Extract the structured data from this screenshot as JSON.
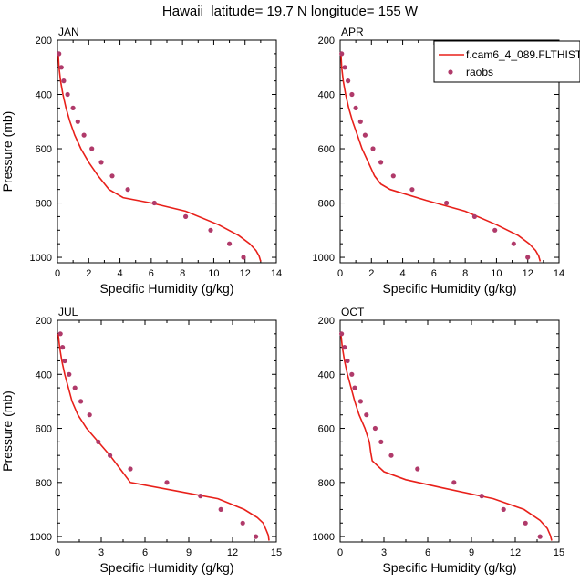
{
  "figure": {
    "title": "Hawaii  latitude= 19.7 N longitude= 155 W"
  },
  "legend": {
    "position": "top-right",
    "entries": [
      {
        "label": "f.cam6_4_089.FLTHIST",
        "kind": "line",
        "color": "#e8201a"
      },
      {
        "label": "raobs",
        "kind": "marker",
        "color": "#b03a6a"
      }
    ]
  },
  "colors": {
    "model_line": "#e8201a",
    "obs_marker": "#b03a6a"
  },
  "chart_data": [
    {
      "type": "line",
      "panel": "JAN",
      "title": "JAN",
      "xlabel": "Specific Humidity (g/kg)",
      "ylabel": "Pressure (mb)",
      "xlim": [
        0,
        14
      ],
      "ylim": [
        1020,
        200
      ],
      "xticks": [
        0,
        2,
        4,
        6,
        8,
        10,
        12,
        14
      ],
      "yticks": [
        200,
        400,
        600,
        800,
        1000
      ],
      "y_reversed": true,
      "series": [
        {
          "name": "f.cam6_4_089.FLTHIST",
          "kind": "line",
          "x": [
            0.05,
            0.1,
            0.2,
            0.35,
            0.55,
            0.8,
            1.1,
            1.5,
            2.0,
            2.6,
            3.3,
            4.2,
            6.0,
            8.2,
            10.3,
            11.6,
            12.3,
            12.7,
            12.9,
            13.0
          ],
          "y": [
            250,
            300,
            350,
            400,
            450,
            500,
            550,
            600,
            650,
            700,
            750,
            780,
            800,
            830,
            880,
            920,
            950,
            975,
            995,
            1015
          ]
        },
        {
          "name": "raobs",
          "kind": "marker",
          "x": [
            0.1,
            0.25,
            0.4,
            0.65,
            1.0,
            1.3,
            1.7,
            2.2,
            2.8,
            3.5,
            4.5,
            6.2,
            8.2,
            9.8,
            11.0,
            11.9
          ],
          "y": [
            250,
            300,
            350,
            400,
            450,
            500,
            550,
            600,
            650,
            700,
            750,
            800,
            850,
            900,
            950,
            1000
          ]
        }
      ]
    },
    {
      "type": "line",
      "panel": "APR",
      "title": "APR",
      "xlabel": "Specific Humidity (g/kg)",
      "ylabel": "",
      "xlim": [
        0,
        14
      ],
      "ylim": [
        1020,
        200
      ],
      "xticks": [
        0,
        2,
        4,
        6,
        8,
        10,
        12,
        14
      ],
      "yticks": [
        200,
        400,
        600,
        800,
        1000
      ],
      "y_reversed": true,
      "series": [
        {
          "name": "f.cam6_4_089.FLTHIST",
          "kind": "line",
          "x": [
            0.05,
            0.1,
            0.2,
            0.35,
            0.55,
            0.8,
            1.1,
            1.4,
            1.8,
            2.2,
            2.6,
            3.2,
            5.5,
            8.0,
            10.0,
            11.4,
            12.1,
            12.5,
            12.7,
            12.8
          ],
          "y": [
            250,
            300,
            350,
            400,
            450,
            500,
            550,
            600,
            650,
            700,
            730,
            750,
            790,
            830,
            880,
            920,
            950,
            975,
            995,
            1015
          ]
        },
        {
          "name": "raobs",
          "kind": "marker",
          "x": [
            0.1,
            0.3,
            0.5,
            0.75,
            1.0,
            1.3,
            1.6,
            2.1,
            2.6,
            3.4,
            4.6,
            6.8,
            8.6,
            9.9,
            11.1,
            12.0
          ],
          "y": [
            250,
            300,
            350,
            400,
            450,
            500,
            550,
            600,
            650,
            700,
            750,
            800,
            850,
            900,
            950,
            1000
          ]
        }
      ]
    },
    {
      "type": "line",
      "panel": "JUL",
      "title": "JUL",
      "xlabel": "Specific Humidity (g/kg)",
      "ylabel": "Pressure (mb)",
      "xlim": [
        0,
        15
      ],
      "ylim": [
        1020,
        200
      ],
      "xticks": [
        0,
        3,
        6,
        9,
        12,
        15
      ],
      "yticks": [
        200,
        400,
        600,
        800,
        1000
      ],
      "y_reversed": true,
      "series": [
        {
          "name": "f.cam6_4_089.FLTHIST",
          "kind": "line",
          "x": [
            0.05,
            0.15,
            0.3,
            0.5,
            0.75,
            1.0,
            1.4,
            2.0,
            2.8,
            3.6,
            4.3,
            5.0,
            8.0,
            11.0,
            12.8,
            13.7,
            14.1,
            14.3,
            14.45,
            14.5
          ],
          "y": [
            250,
            300,
            350,
            400,
            450,
            500,
            550,
            600,
            650,
            700,
            750,
            800,
            830,
            860,
            900,
            930,
            950,
            975,
            995,
            1015
          ]
        },
        {
          "name": "raobs",
          "kind": "marker",
          "x": [
            0.2,
            0.35,
            0.5,
            0.8,
            1.2,
            1.6,
            2.2,
            2.8,
            3.6,
            5.0,
            7.5,
            9.8,
            11.2,
            12.7,
            13.6
          ],
          "y": [
            250,
            300,
            350,
            400,
            450,
            500,
            550,
            650,
            700,
            750,
            800,
            850,
            900,
            950,
            1000
          ]
        }
      ]
    },
    {
      "type": "line",
      "panel": "OCT",
      "title": "OCT",
      "xlabel": "Specific Humidity (g/kg)",
      "ylabel": "",
      "xlim": [
        0,
        15
      ],
      "ylim": [
        1020,
        200
      ],
      "xticks": [
        0,
        3,
        6,
        9,
        12,
        15
      ],
      "yticks": [
        200,
        400,
        600,
        800,
        1000
      ],
      "y_reversed": true,
      "series": [
        {
          "name": "f.cam6_4_089.FLTHIST",
          "kind": "line",
          "x": [
            0.05,
            0.15,
            0.3,
            0.5,
            0.75,
            1.0,
            1.3,
            1.7,
            2.0,
            2.1,
            2.2,
            3.0,
            4.5,
            7.0,
            10.5,
            12.6,
            13.7,
            14.2,
            14.4,
            14.5
          ],
          "y": [
            250,
            300,
            350,
            400,
            450,
            500,
            550,
            600,
            650,
            690,
            720,
            760,
            790,
            820,
            860,
            900,
            940,
            970,
            995,
            1015
          ]
        },
        {
          "name": "raobs",
          "kind": "marker",
          "x": [
            0.1,
            0.3,
            0.5,
            0.8,
            1.0,
            1.4,
            1.8,
            2.4,
            2.8,
            3.5,
            5.3,
            7.8,
            9.7,
            11.2,
            12.7,
            13.7
          ],
          "y": [
            250,
            300,
            350,
            400,
            450,
            500,
            550,
            600,
            650,
            700,
            750,
            800,
            850,
            900,
            950,
            1000
          ]
        }
      ]
    }
  ]
}
